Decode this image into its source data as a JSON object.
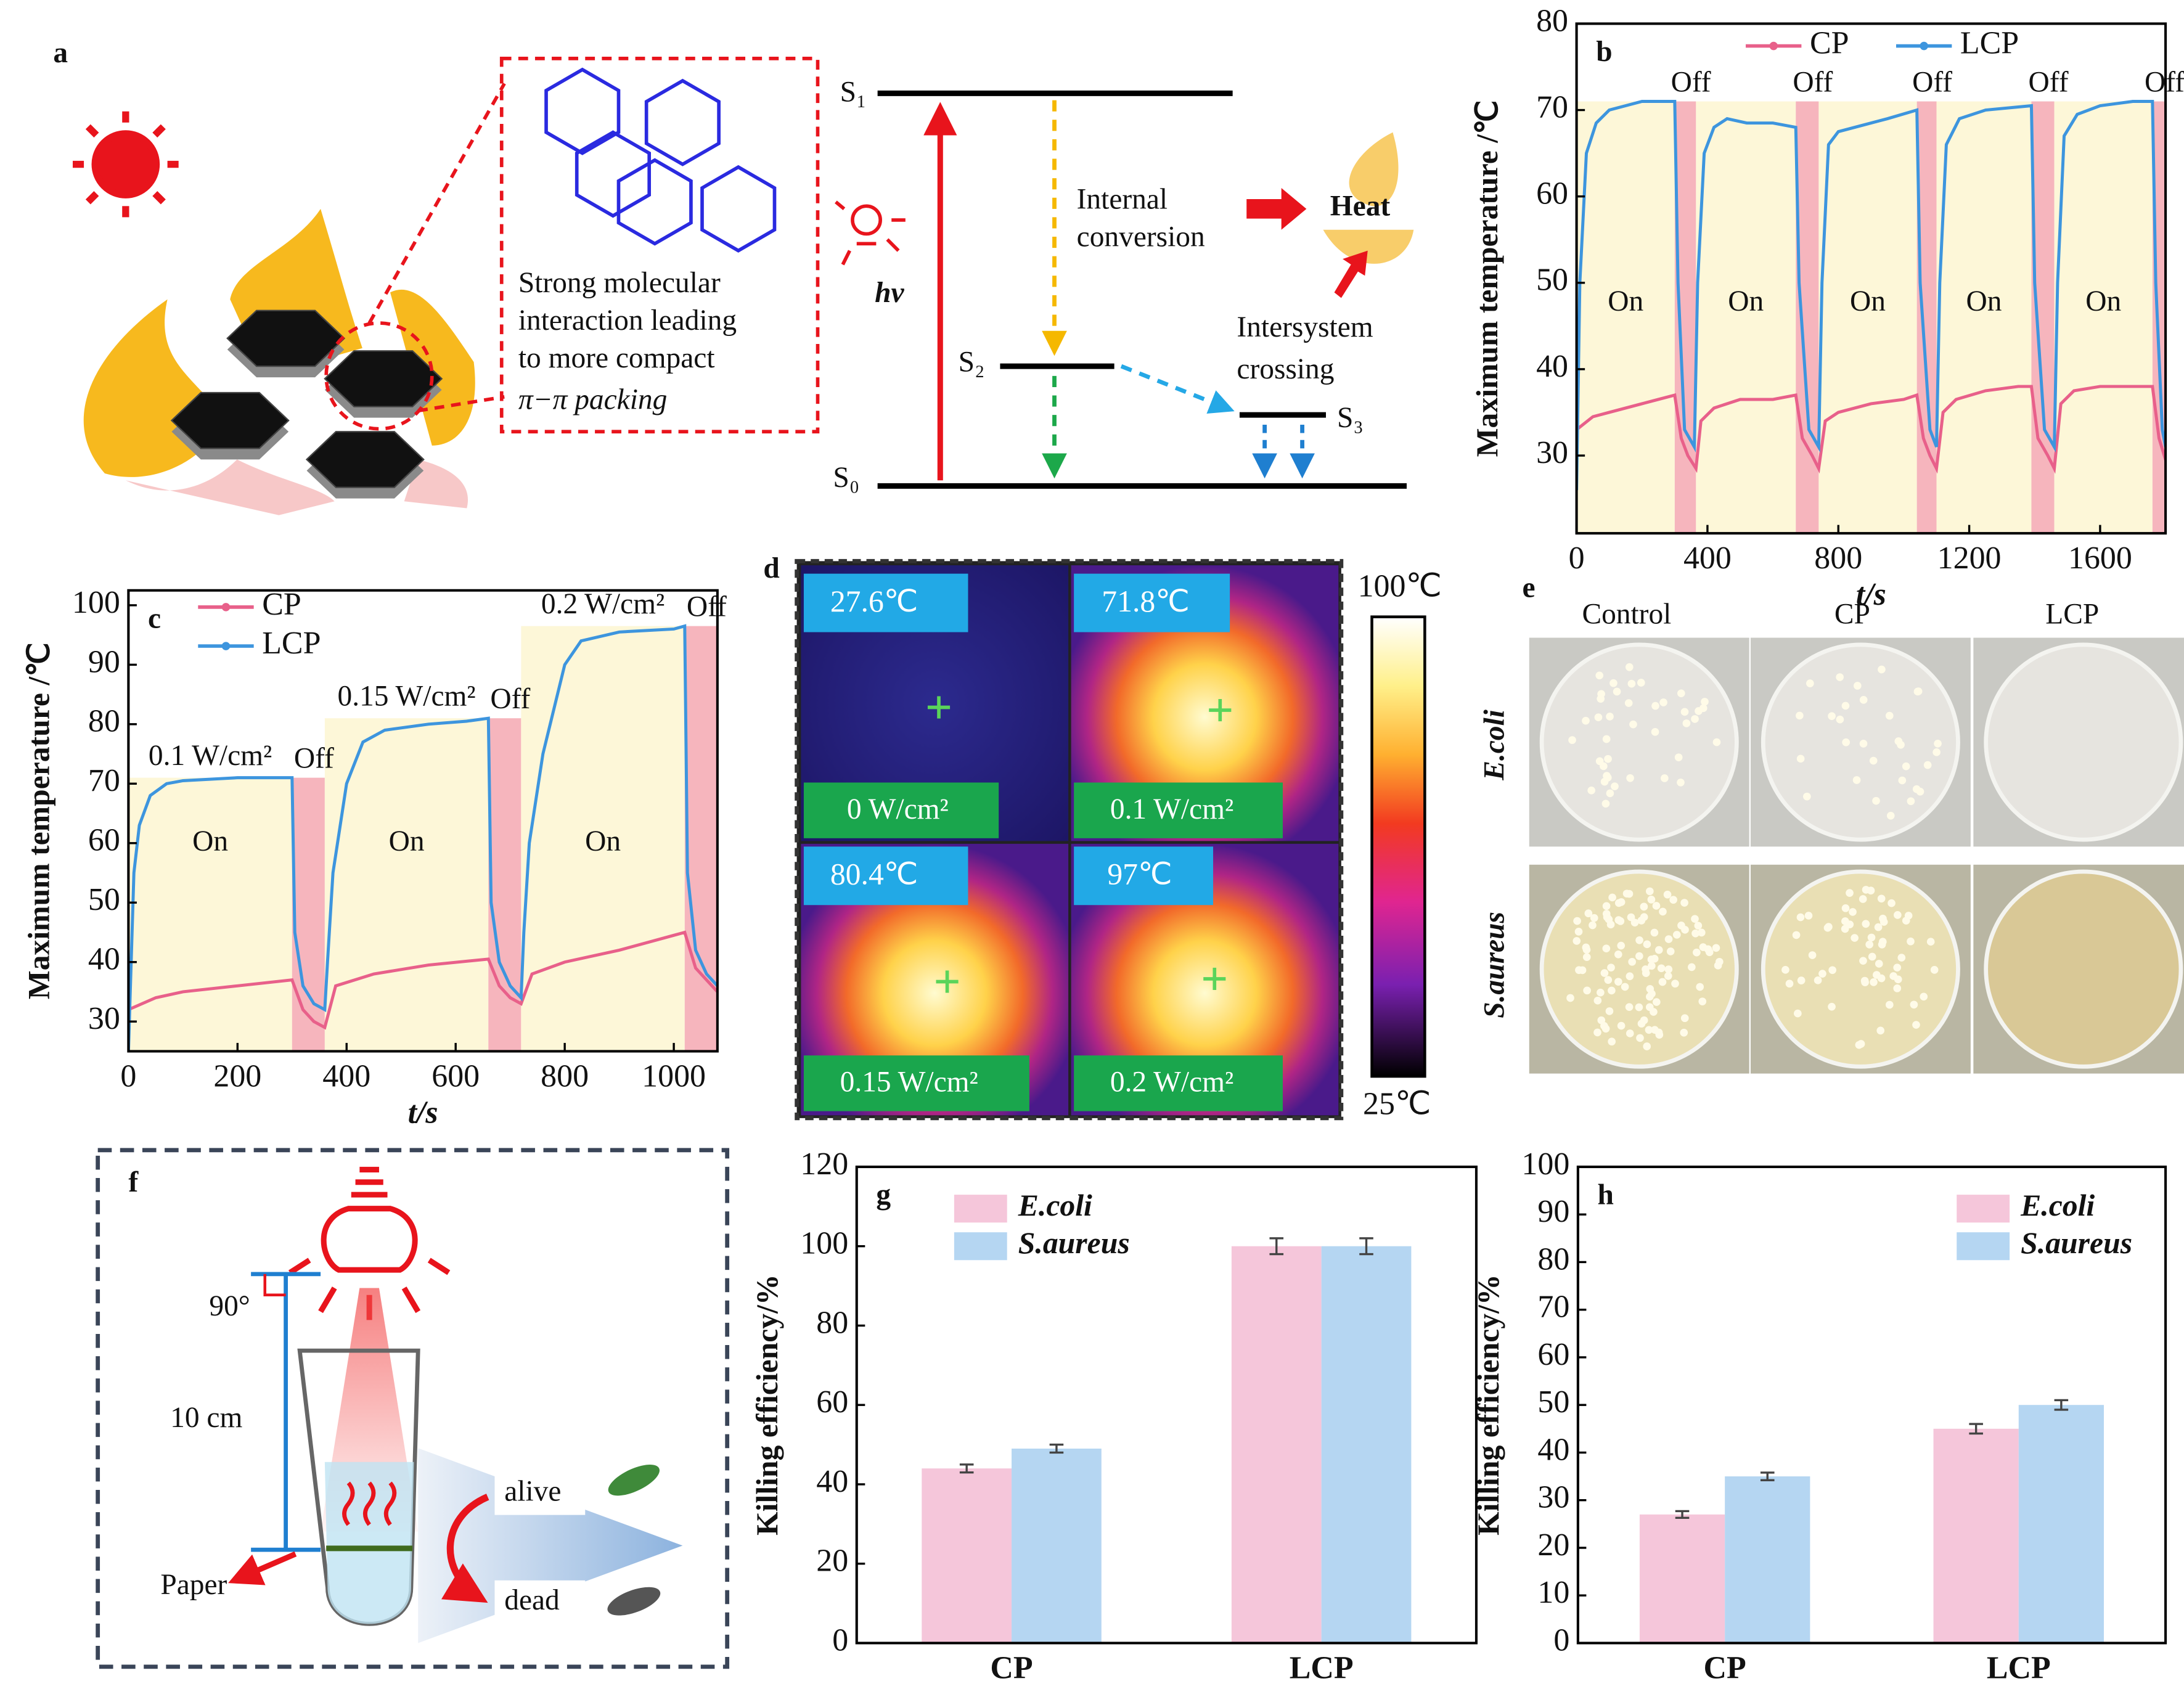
{
  "chart_data": [
    {
      "label": "b",
      "type": "line",
      "xlabel": "t/s",
      "ylabel": "Maximum temperature /℃",
      "xlim": [
        0,
        1800
      ],
      "xticks": [
        0,
        400,
        800,
        1200,
        1600
      ],
      "ylim": [
        21,
        80
      ],
      "yticks": [
        30,
        40,
        50,
        60,
        70,
        80
      ],
      "legend": "upper center",
      "regions": [
        {
          "label": "On",
          "start": 0,
          "end": 300,
          "top": 71
        },
        {
          "label": "Off",
          "start": 300,
          "end": 365,
          "top": 71
        },
        {
          "label": "On",
          "start": 365,
          "end": 670,
          "top": 71
        },
        {
          "label": "Off",
          "start": 670,
          "end": 740,
          "top": 71
        },
        {
          "label": "On",
          "start": 740,
          "end": 1040,
          "top": 71
        },
        {
          "label": "Off",
          "start": 1040,
          "end": 1100,
          "top": 71
        },
        {
          "label": "On",
          "start": 1100,
          "end": 1390,
          "top": 71
        },
        {
          "label": "Off",
          "start": 1390,
          "end": 1460,
          "top": 71
        },
        {
          "label": "On",
          "start": 1460,
          "end": 1760,
          "top": 71
        },
        {
          "label": "Off",
          "start": 1760,
          "end": 1800,
          "top": 71
        }
      ],
      "series": [
        {
          "name": "CP",
          "color": "#e8608a",
          "x": [
            0,
            50,
            100,
            150,
            200,
            250,
            300,
            320,
            340,
            365,
            380,
            420,
            500,
            600,
            670,
            690,
            720,
            740,
            760,
            800,
            900,
            1000,
            1040,
            1060,
            1080,
            1100,
            1120,
            1160,
            1250,
            1350,
            1390,
            1410,
            1440,
            1460,
            1480,
            1520,
            1600,
            1700,
            1760,
            1780,
            1800
          ],
          "values": [
            33,
            34.5,
            35,
            35.5,
            36,
            36.5,
            37,
            32,
            30,
            28.5,
            34,
            35.5,
            36.5,
            36.5,
            37,
            32,
            30,
            28.5,
            34,
            35,
            36,
            36.5,
            37,
            32,
            30,
            28.5,
            35,
            36.5,
            37.5,
            38,
            38,
            32,
            30,
            28.5,
            36,
            37.5,
            38,
            38,
            38,
            32,
            29.5
          ]
        },
        {
          "name": "LCP",
          "color": "#3d95de",
          "x": [
            0,
            10,
            30,
            60,
            100,
            150,
            200,
            250,
            300,
            310,
            330,
            360,
            370,
            390,
            420,
            460,
            520,
            600,
            670,
            680,
            710,
            740,
            750,
            770,
            800,
            850,
            950,
            1040,
            1050,
            1080,
            1100,
            1110,
            1130,
            1170,
            1250,
            1390,
            1400,
            1430,
            1460,
            1470,
            1490,
            1530,
            1600,
            1700,
            1760,
            1770,
            1790,
            1800
          ],
          "values": [
            26,
            50,
            65,
            68.5,
            70,
            70.5,
            71,
            71,
            71,
            50,
            33,
            31,
            50,
            65,
            68,
            69,
            68.5,
            68.5,
            68,
            50,
            33,
            31,
            50,
            66,
            67.5,
            68,
            69,
            70,
            50,
            33,
            31,
            50,
            66,
            69,
            70,
            70.5,
            50,
            33,
            31,
            50,
            67,
            69.5,
            70.5,
            71,
            71,
            50,
            33,
            31
          ]
        }
      ]
    },
    {
      "label": "c",
      "type": "line",
      "xlabel": "t/s",
      "ylabel": "Maximum temperature /℃",
      "xlim": [
        0,
        1080
      ],
      "xticks": [
        0,
        200,
        400,
        600,
        800,
        1000
      ],
      "ylim": [
        25,
        102.5
      ],
      "yticks": [
        30,
        40,
        50,
        60,
        70,
        80,
        90,
        100
      ],
      "legend": "upper left",
      "regions": [
        {
          "label": "On",
          "start": 0,
          "end": 300,
          "top": 71,
          "note": "0.1 W/cm²"
        },
        {
          "label": "Off",
          "start": 300,
          "end": 360,
          "top": 71
        },
        {
          "label": "On",
          "start": 360,
          "end": 660,
          "top": 81,
          "note": "0.15 W/cm²"
        },
        {
          "label": "Off",
          "start": 660,
          "end": 720,
          "top": 81
        },
        {
          "label": "On",
          "start": 720,
          "end": 1020,
          "top": 96.5,
          "note": "0.2 W/cm²"
        },
        {
          "label": "Off",
          "start": 1020,
          "end": 1080,
          "top": 96.5
        }
      ],
      "series": [
        {
          "name": "CP",
          "color": "#e8608a",
          "x": [
            0,
            50,
            100,
            200,
            300,
            320,
            340,
            360,
            380,
            450,
            550,
            660,
            680,
            700,
            720,
            740,
            800,
            900,
            1000,
            1020,
            1040,
            1060,
            1080
          ],
          "values": [
            32,
            34,
            35,
            36,
            37,
            32,
            30,
            29,
            36,
            38,
            39.5,
            40.5,
            36,
            34,
            33,
            38,
            40,
            42,
            44.5,
            45,
            39,
            37,
            35
          ]
        },
        {
          "name": "LCP",
          "color": "#3d95de",
          "x": [
            0,
            10,
            20,
            40,
            70,
            100,
            200,
            300,
            305,
            320,
            340,
            360,
            365,
            375,
            400,
            430,
            470,
            550,
            620,
            660,
            665,
            680,
            700,
            720,
            725,
            735,
            760,
            800,
            830,
            900,
            1000,
            1020,
            1025,
            1040,
            1060,
            1080
          ],
          "values": [
            25,
            55,
            63,
            68,
            70,
            70.5,
            71,
            71,
            45,
            36,
            33,
            32,
            40,
            55,
            70,
            77,
            79,
            80,
            80.5,
            81,
            50,
            40,
            36,
            34,
            45,
            60,
            75,
            90,
            94,
            95.5,
            96,
            96.5,
            55,
            42,
            38,
            36
          ]
        }
      ]
    },
    {
      "label": "g",
      "type": "bar",
      "ylabel": "Killing efficiency/%",
      "categories": [
        "CP",
        "LCP"
      ],
      "ylim": [
        0,
        120
      ],
      "yticks": [
        0,
        20,
        40,
        60,
        80,
        100,
        120
      ],
      "legend": "upper left",
      "series": [
        {
          "name": "E.coli",
          "color": "#f5c6da",
          "values": [
            44,
            100
          ],
          "errors": [
            1,
            2
          ]
        },
        {
          "name": "S.aureus",
          "color": "#b5d6f2",
          "values": [
            49,
            100
          ],
          "errors": [
            1,
            2
          ]
        }
      ]
    },
    {
      "label": "h",
      "type": "bar",
      "ylabel": "Killing efficiency/%",
      "categories": [
        "CP",
        "LCP"
      ],
      "ylim": [
        0,
        100
      ],
      "yticks": [
        0,
        10,
        20,
        30,
        40,
        50,
        60,
        70,
        80,
        90,
        100
      ],
      "legend": "upper right",
      "series": [
        {
          "name": "E.coli",
          "color": "#f5c6da",
          "values": [
            27,
            45
          ],
          "errors": [
            0.7,
            1
          ]
        },
        {
          "name": "S.aureus",
          "color": "#b5d6f2",
          "values": [
            35,
            50
          ],
          "errors": [
            0.8,
            1
          ]
        }
      ]
    }
  ],
  "figure": {
    "a": {
      "label": "a",
      "box_lines": [
        "Strong molecular",
        "interaction leading",
        "to more compact",
        "π−π packing"
      ],
      "levels": [
        "S₁",
        "S₂",
        "S₃",
        "S₀"
      ],
      "photon": "hν",
      "internal": [
        "Internal",
        "conversion"
      ],
      "heat": "Heat",
      "intersystem": [
        "Intersystem",
        "crossing"
      ]
    },
    "d": {
      "label": "d",
      "temperatures": [
        "27.6℃",
        "71.8℃",
        "80.4℃",
        "97℃"
      ],
      "powers": [
        "0 W/cm²",
        "0.1 W/cm²",
        "0.15 W/cm²",
        "0.2 W/cm²"
      ],
      "scale_max": "100℃",
      "scale_min": "25℃"
    },
    "e": {
      "label": "e",
      "columns": [
        "Control",
        "CP",
        "LCP"
      ],
      "rows": [
        "E.coli",
        "S.aureus"
      ]
    },
    "f": {
      "label": "f",
      "angle": "90°",
      "distance": "10 cm",
      "paper": "Paper",
      "alive": "alive",
      "dead": "dead"
    }
  }
}
